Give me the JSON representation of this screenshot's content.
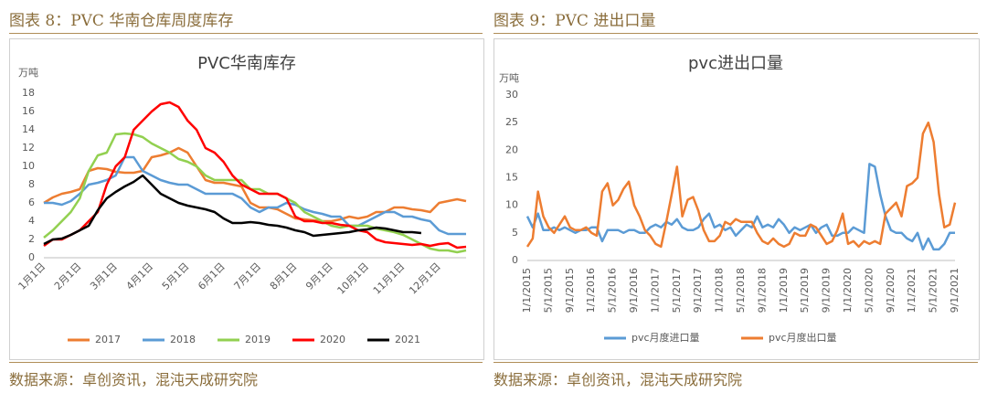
{
  "captions": [
    "图表 8：PVC 华南仓库周度库存",
    "图表 9：PVC 进出口量"
  ],
  "sources": [
    "数据来源：卓创资讯，混沌天成研究院",
    "数据来源：卓创资讯，混沌天成研究院"
  ],
  "chart_data": [
    {
      "type": "line",
      "title": "PVC华南库存",
      "y_label": "万吨",
      "categories": [
        "1月1日",
        null,
        null,
        null,
        "2月1日",
        null,
        null,
        null,
        "3月1日",
        null,
        null,
        null,
        "4月1日",
        null,
        null,
        null,
        "5月1日",
        null,
        null,
        null,
        "6月1日",
        null,
        null,
        null,
        "7月1日",
        null,
        null,
        null,
        "8月1日",
        null,
        null,
        null,
        "9月1日",
        null,
        null,
        null,
        "10月1日",
        null,
        null,
        null,
        "11月1日",
        null,
        null,
        null,
        "12月1日",
        null,
        null,
        null
      ],
      "ylim": [
        0,
        18
      ],
      "yticks": [
        0,
        2,
        4,
        6,
        8,
        10,
        12,
        14,
        16,
        18
      ],
      "grid": false,
      "legend": "bottom",
      "series": [
        {
          "name": "2017",
          "color": "#ed7d31",
          "values": [
            6,
            6.6,
            7,
            7.2,
            7.5,
            9.5,
            9.8,
            9.7,
            9.4,
            9.3,
            9.3,
            9.5,
            11,
            11.2,
            11.5,
            12,
            11.5,
            10,
            8.5,
            8.2,
            8.2,
            8,
            7.8,
            6,
            5.5,
            5.5,
            5.3,
            4.8,
            4.3,
            4.2,
            4.1,
            4,
            4,
            4.2,
            4.5,
            4.3,
            4.5,
            5,
            5,
            5.5,
            5.5,
            5.3,
            5.2,
            5,
            6,
            6.2,
            6.4,
            6.2
          ]
        },
        {
          "name": "2018",
          "color": "#5b9bd5",
          "values": [
            6,
            6,
            5.8,
            6.2,
            7,
            8,
            8.2,
            8.5,
            9,
            11,
            11,
            9.5,
            9,
            8.5,
            8.2,
            8,
            8,
            7.5,
            7,
            7,
            7,
            7,
            6.5,
            5.5,
            5,
            5.5,
            5.5,
            6,
            5.8,
            5.3,
            5,
            4.8,
            4.5,
            4.5,
            3.5,
            3.5,
            4,
            4.5,
            5,
            5,
            4.5,
            4.5,
            4.2,
            4,
            3,
            2.6,
            2.6,
            2.6
          ]
        },
        {
          "name": "2019",
          "color": "#92d050",
          "values": [
            2.2,
            3,
            4,
            5,
            6.5,
            9.5,
            11.2,
            11.5,
            13.5,
            13.6,
            13.5,
            13.2,
            12.5,
            12,
            11.5,
            10.8,
            10.5,
            10,
            9,
            8.5,
            8.5,
            8.5,
            8.5,
            7.5,
            7.5,
            7,
            7,
            6.5,
            6,
            5,
            4.5,
            4,
            3.5,
            3.3,
            3.5,
            3.5,
            3.5,
            3.2,
            3,
            2.8,
            2.5,
            2,
            1.5,
            1,
            0.8,
            0.8,
            0.6,
            0.8
          ]
        },
        {
          "name": "2020",
          "color": "#ff0000",
          "values": [
            1.3,
            2,
            2,
            2.5,
            3,
            4,
            5,
            8,
            10,
            11,
            14,
            15,
            16,
            16.8,
            17,
            16.5,
            15,
            14,
            12,
            11.5,
            10.5,
            9,
            8,
            7.5,
            7,
            7,
            7,
            6.5,
            4.5,
            4,
            4,
            3.8,
            3.8,
            3.6,
            3.5,
            3,
            2.8,
            2,
            1.7,
            1.6,
            1.5,
            1.4,
            1.5,
            1.3,
            1.5,
            1.6,
            1.1,
            1.2
          ]
        },
        {
          "name": "2021",
          "color": "#000000",
          "values": [
            1.5,
            2,
            2.1,
            2.5,
            3,
            3.5,
            5.2,
            6.5,
            7.2,
            7.8,
            8.3,
            9,
            8,
            7,
            6.5,
            6,
            5.7,
            5.5,
            5.3,
            5,
            4.3,
            3.8,
            3.8,
            3.9,
            3.8,
            3.6,
            3.5,
            3.3,
            3,
            2.8,
            2.4,
            2.5,
            2.6,
            2.7,
            2.8,
            3,
            3.1,
            3.3,
            3.2,
            3,
            2.8,
            2.8,
            2.7,
            null,
            null,
            null,
            null,
            null
          ]
        }
      ]
    },
    {
      "type": "line",
      "title": "pvc进出口量",
      "y_label": "万吨",
      "categories": [
        "1/1/2015",
        null,
        null,
        null,
        "5/1/2015",
        null,
        null,
        null,
        "9/1/2015",
        null,
        null,
        null,
        "1/1/2016",
        null,
        null,
        null,
        "5/1/2016",
        null,
        null,
        null,
        "9/1/2016",
        null,
        null,
        null,
        "1/1/2017",
        null,
        null,
        null,
        "5/1/2017",
        null,
        null,
        null,
        "9/1/2017",
        null,
        null,
        null,
        "1/1/2018",
        null,
        null,
        null,
        "5/1/2018",
        null,
        null,
        null,
        "9/1/2018",
        null,
        null,
        null,
        "1/1/2019",
        null,
        null,
        null,
        "5/1/2019",
        null,
        null,
        null,
        "9/1/2019",
        null,
        null,
        null,
        "1/1/2020",
        null,
        null,
        null,
        "5/1/2020",
        null,
        null,
        null,
        "9/1/2020",
        null,
        null,
        null,
        "1/1/2021",
        null,
        null,
        null,
        "5/1/2021",
        null,
        null,
        null,
        "9/1/2021"
      ],
      "ylim": [
        0,
        30
      ],
      "yticks": [
        0,
        5,
        10,
        15,
        20,
        25,
        30
      ],
      "grid": false,
      "legend": "bottom",
      "series": [
        {
          "name": "pvc月度进口量",
          "color": "#5b9bd5",
          "values": [
            8,
            6,
            8.5,
            5.5,
            5.5,
            6,
            5.5,
            6,
            5.5,
            5,
            5.5,
            5.5,
            6,
            6,
            3.5,
            5.5,
            5.5,
            5.5,
            5,
            5.5,
            5.5,
            5,
            5,
            6,
            6.5,
            6,
            7,
            6.5,
            7.5,
            6,
            5.5,
            5.5,
            6,
            7.5,
            8.5,
            6,
            6.5,
            5.5,
            6,
            4.5,
            5.5,
            6.5,
            6,
            8,
            6,
            6.5,
            6,
            7.5,
            6.5,
            5,
            6,
            5.5,
            6,
            6.5,
            5,
            6,
            6.5,
            4.5,
            4.5,
            5,
            5,
            6,
            5.5,
            5,
            17.5,
            17,
            12,
            8,
            5.5,
            5,
            5,
            4,
            3.5,
            5,
            2,
            4,
            2,
            2,
            3,
            5,
            5
          ]
        },
        {
          "name": "pvc月度出口量",
          "color": "#ed7d31",
          "values": [
            2.5,
            4,
            12.5,
            8,
            6,
            5,
            6.5,
            8,
            6,
            5.5,
            5.5,
            6,
            5,
            4.5,
            12.5,
            14,
            10,
            11,
            13,
            14.3,
            10,
            8,
            5.5,
            4.5,
            3,
            2.5,
            7,
            12,
            17,
            8,
            11,
            11.5,
            9,
            5.5,
            3.5,
            3.5,
            4.5,
            7,
            6.5,
            7.5,
            7,
            7,
            7,
            5,
            3.5,
            3,
            4,
            3,
            2.5,
            3,
            5,
            4.5,
            4.5,
            6.5,
            6,
            4.5,
            3,
            3.5,
            5.5,
            8.5,
            3,
            3.5,
            2.5,
            3.5,
            3,
            3.5,
            3,
            8.5,
            9.5,
            10.5,
            8,
            13.5,
            14,
            15,
            23,
            25,
            21.5,
            12,
            6,
            6.5,
            10.5
          ]
        }
      ]
    }
  ]
}
